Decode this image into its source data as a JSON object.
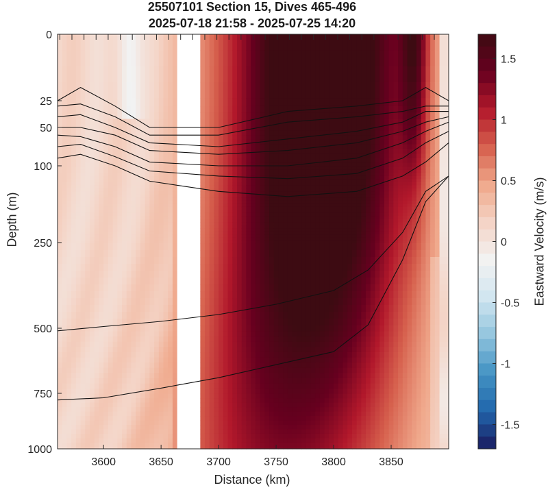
{
  "chart_data": {
    "type": "heatmap",
    "title_line1": "25507101 Section 15, Dives 465-496",
    "title_line2": "2025-07-18 21:58 - 2025-07-25 14:20",
    "xlabel": "Distance (km)",
    "ylabel": "Depth (m)",
    "colorbar_label": "Eastward Velocity (m/s)",
    "x_range": [
      3560,
      3900
    ],
    "x_ticks": [
      3600,
      3650,
      3700,
      3750,
      3800,
      3850
    ],
    "y_ticks": [
      0,
      25,
      50,
      100,
      250,
      500,
      750,
      1000
    ],
    "y_scale": "stretched (upper layer expanded)",
    "colorbar_range": [
      -1.7,
      1.7
    ],
    "colorbar_ticks": [
      1.5,
      1,
      0.5,
      0,
      -0.5,
      -1,
      -1.5
    ],
    "gap_km": [
      3664,
      3684
    ],
    "colormap": [
      "#1a1a5e",
      "#2166ac",
      "#4393c3",
      "#92c5de",
      "#d1e5f0",
      "#f2f2f2",
      "#f4d4c6",
      "#f0a98c",
      "#d6604d",
      "#b2182b",
      "#67001f",
      "#3d0b12"
    ],
    "jet_core": {
      "center_km": 3795,
      "max_velocity": 1.7,
      "deep_boundary_depth_m": 250
    },
    "contours": [
      {
        "depth_m": [
          25,
          20,
          30,
          50,
          50,
          35,
          30,
          25,
          20,
          25
        ],
        "x_km": [
          3560,
          3580,
          3610,
          3640,
          3700,
          3760,
          3820,
          3860,
          3880,
          3900
        ]
      },
      {
        "depth_m": [
          30,
          28,
          40,
          60,
          60,
          45,
          40,
          35,
          30,
          30
        ],
        "x_km": [
          3560,
          3580,
          3610,
          3640,
          3700,
          3760,
          3820,
          3860,
          3880,
          3900
        ]
      },
      {
        "depth_m": [
          40,
          38,
          50,
          70,
          75,
          65,
          55,
          45,
          35,
          35
        ],
        "x_km": [
          3560,
          3580,
          3610,
          3640,
          3700,
          3760,
          3820,
          3860,
          3880,
          3900
        ]
      },
      {
        "depth_m": [
          50,
          50,
          60,
          80,
          85,
          80,
          70,
          55,
          45,
          40
        ],
        "x_km": [
          3560,
          3580,
          3610,
          3640,
          3700,
          3760,
          3820,
          3860,
          3880,
          3900
        ]
      },
      {
        "depth_m": [
          60,
          62,
          75,
          95,
          100,
          100,
          90,
          70,
          55,
          45
        ],
        "x_km": [
          3560,
          3580,
          3610,
          3640,
          3700,
          3760,
          3820,
          3860,
          3880,
          3900
        ]
      },
      {
        "depth_m": [
          75,
          72,
          88,
          110,
          120,
          125,
          115,
          90,
          70,
          55
        ],
        "x_km": [
          3560,
          3580,
          3610,
          3640,
          3700,
          3760,
          3820,
          3860,
          3880,
          3900
        ]
      },
      {
        "depth_m": [
          90,
          85,
          100,
          130,
          150,
          160,
          150,
          120,
          95,
          70
        ],
        "x_km": [
          3560,
          3580,
          3610,
          3640,
          3700,
          3760,
          3820,
          3860,
          3880,
          3900
        ]
      },
      {
        "depth_m": [
          510,
          495,
          480,
          460,
          430,
          390,
          330,
          230,
          150,
          120
        ],
        "x_km": [
          3560,
          3600,
          3650,
          3700,
          3750,
          3800,
          3830,
          3860,
          3880,
          3900
        ]
      },
      {
        "depth_m": [
          780,
          770,
          730,
          690,
          640,
          590,
          490,
          300,
          170,
          120
        ],
        "x_km": [
          3560,
          3600,
          3650,
          3700,
          3750,
          3800,
          3830,
          3860,
          3880,
          3900
        ]
      }
    ]
  }
}
